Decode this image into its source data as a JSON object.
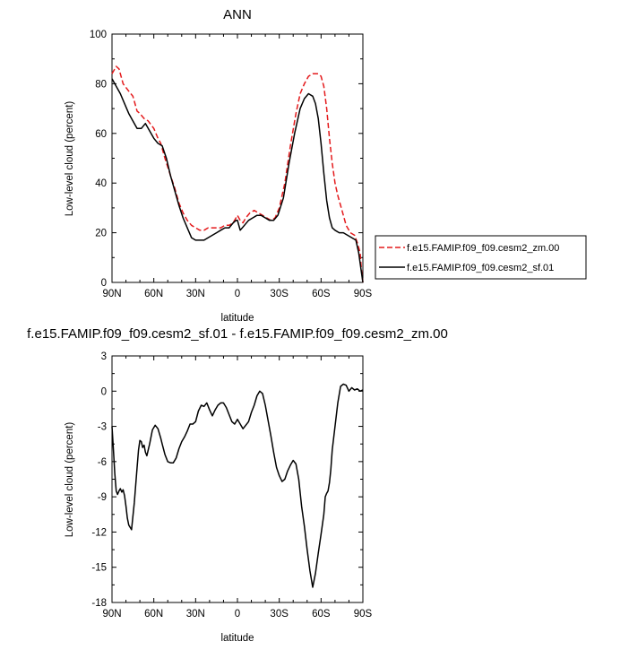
{
  "chart_data": [
    {
      "type": "line",
      "title": "ANN",
      "xlabel": "latitude",
      "ylabel": "Low-level cloud (percent)",
      "xlim": [
        90,
        -90
      ],
      "ylim": [
        0,
        100
      ],
      "xticks": [
        90,
        60,
        30,
        0,
        -30,
        -60,
        -90
      ],
      "xtick_labels": [
        "90N",
        "60N",
        "30N",
        "0",
        "30S",
        "60S",
        "90S"
      ],
      "yticks": [
        0,
        20,
        40,
        60,
        80,
        100
      ],
      "ytick_labels": [
        "0",
        "20",
        "40",
        "60",
        "80",
        "100"
      ],
      "grid": false,
      "legend_position": "right",
      "series": [
        {
          "name": "f.e15.FAMIP.f09_f09.cesm2_zm.00",
          "color": "#e41a1c",
          "dash": "dashed",
          "x": [
            90,
            87,
            85,
            82,
            78,
            75,
            72,
            70,
            67,
            64,
            60,
            57,
            55,
            52,
            48,
            45,
            42,
            39,
            36,
            33,
            30,
            27,
            24,
            21,
            18,
            15,
            12,
            9,
            6,
            3,
            1,
            0,
            -2,
            -4,
            -6,
            -9,
            -12,
            -15,
            -18,
            -21,
            -24,
            -27,
            -30,
            -34,
            -38,
            -42,
            -45,
            -48,
            -51,
            -54,
            -56,
            -58,
            -60,
            -62,
            -64,
            -66,
            -68,
            -70,
            -72,
            -75,
            -78,
            -81,
            -84,
            -86,
            -88,
            -89,
            -90
          ],
          "y": [
            84,
            87,
            86,
            80,
            77,
            75,
            69,
            68,
            66,
            65,
            62,
            58,
            56,
            50,
            43,
            38,
            32,
            28,
            25,
            23,
            22,
            21,
            21,
            22,
            22,
            22,
            22,
            23,
            23,
            24,
            26,
            27,
            25,
            24,
            26,
            28,
            29,
            28,
            27,
            26,
            25,
            26,
            30,
            40,
            55,
            68,
            76,
            80,
            83,
            84,
            84,
            84,
            83,
            79,
            70,
            58,
            48,
            40,
            35,
            29,
            23,
            20,
            19,
            16,
            12,
            5,
            0
          ]
        },
        {
          "name": "f.e15.FAMIP.f09_f09.cesm2_sf.01",
          "color": "#000000",
          "dash": "solid",
          "x": [
            90,
            87,
            84,
            81,
            78,
            75,
            72,
            69,
            66,
            63,
            60,
            57,
            54,
            51,
            48,
            45,
            42,
            39,
            36,
            33,
            30,
            27,
            24,
            21,
            18,
            15,
            12,
            9,
            6,
            3,
            1,
            0,
            -2,
            -5,
            -8,
            -11,
            -14,
            -17,
            -20,
            -23,
            -26,
            -29,
            -33,
            -37,
            -41,
            -45,
            -48,
            -51,
            -54,
            -56,
            -58,
            -60,
            -62,
            -64,
            -66,
            -68,
            -70,
            -73,
            -76,
            -79,
            -82,
            -85,
            -87,
            -89,
            -90
          ],
          "y": [
            82,
            79,
            76,
            72,
            68,
            65,
            62,
            62,
            64,
            61,
            58,
            56,
            55,
            50,
            43,
            37,
            31,
            26,
            22,
            18,
            17,
            17,
            17,
            18,
            19,
            20,
            21,
            22,
            22,
            24,
            25,
            25,
            21,
            23,
            25,
            26,
            27,
            27,
            26,
            25,
            25,
            27,
            34,
            48,
            60,
            70,
            74,
            76,
            75,
            72,
            66,
            56,
            44,
            33,
            26,
            22,
            21,
            20,
            20,
            19,
            18,
            17,
            12,
            4,
            0
          ]
        }
      ]
    },
    {
      "type": "line",
      "title": "f.e15.FAMIP.f09_f09.cesm2_sf.01 - f.e15.FAMIP.f09_f09.cesm2_zm.00",
      "xlabel": "latitude",
      "ylabel": "Low-level cloud (percent)",
      "xlim": [
        90,
        -90
      ],
      "ylim": [
        -18,
        3
      ],
      "xticks": [
        90,
        60,
        30,
        0,
        -30,
        -60,
        -90
      ],
      "xtick_labels": [
        "90N",
        "60N",
        "30N",
        "0",
        "30S",
        "60S",
        "90S"
      ],
      "yticks": [
        3,
        0,
        -3,
        -6,
        -9,
        -12,
        -15,
        -18
      ],
      "ytick_labels": [
        "3",
        "0",
        "-3",
        "-6",
        "-9",
        "-12",
        "-15",
        "-18"
      ],
      "grid": false,
      "series": [
        {
          "color": "#000000",
          "dash": "solid",
          "x": [
            90,
            89,
            88,
            87,
            86,
            85,
            84,
            83,
            82,
            81,
            80,
            79,
            78,
            76,
            74,
            72,
            71,
            70,
            69,
            68,
            67,
            66,
            65,
            63,
            61,
            59,
            57,
            55,
            54,
            52,
            50,
            48,
            46,
            44,
            42,
            40,
            38,
            36,
            34,
            32,
            30,
            28,
            26,
            24,
            22,
            20,
            18,
            16,
            14,
            12,
            10,
            8,
            6,
            4,
            2,
            0,
            -2,
            -4,
            -6,
            -8,
            -10,
            -12,
            -14,
            -16,
            -18,
            -20,
            -22,
            -24,
            -26,
            -28,
            -30,
            -32,
            -34,
            -36,
            -38,
            -40,
            -42,
            -44,
            -46,
            -48,
            -50,
            -52,
            -54,
            -56,
            -58,
            -60,
            -62,
            -63,
            -64,
            -65,
            -66,
            -67,
            -68,
            -70,
            -72,
            -74,
            -76,
            -78,
            -80,
            -82,
            -84,
            -86,
            -88,
            -90
          ],
          "y": [
            -3,
            -5,
            -7,
            -8.5,
            -8.8,
            -8.5,
            -8.3,
            -8.6,
            -8.4,
            -8.9,
            -9.8,
            -10.8,
            -11.4,
            -11.8,
            -9.5,
            -6.5,
            -5,
            -4.2,
            -4.3,
            -4.8,
            -4.6,
            -5.2,
            -5.5,
            -4.5,
            -3.3,
            -2.9,
            -3.2,
            -4,
            -4.5,
            -5.4,
            -6,
            -6.1,
            -6.1,
            -5.7,
            -4.9,
            -4.3,
            -3.9,
            -3.4,
            -2.8,
            -2.8,
            -2.6,
            -1.7,
            -1.2,
            -1.3,
            -1.0,
            -1.6,
            -2.1,
            -1.6,
            -1.2,
            -1.0,
            -1.0,
            -1.4,
            -2.0,
            -2.6,
            -2.8,
            -2.4,
            -2.8,
            -3.2,
            -2.9,
            -2.6,
            -1.8,
            -1.2,
            -0.4,
            0.0,
            -0.2,
            -1.2,
            -2.5,
            -3.8,
            -5.2,
            -6.5,
            -7.2,
            -7.7,
            -7.5,
            -6.8,
            -6.3,
            -5.9,
            -6.2,
            -7.5,
            -9.8,
            -11.5,
            -13.5,
            -15.3,
            -16.7,
            -15.5,
            -13.8,
            -12.2,
            -10.5,
            -9.0,
            -8.7,
            -8.5,
            -7.8,
            -6.7,
            -5.0,
            -3.0,
            -1.0,
            0.4,
            0.6,
            0.5,
            0.0,
            0.3,
            0.1,
            0.2,
            0.0,
            0.1
          ]
        }
      ]
    }
  ]
}
